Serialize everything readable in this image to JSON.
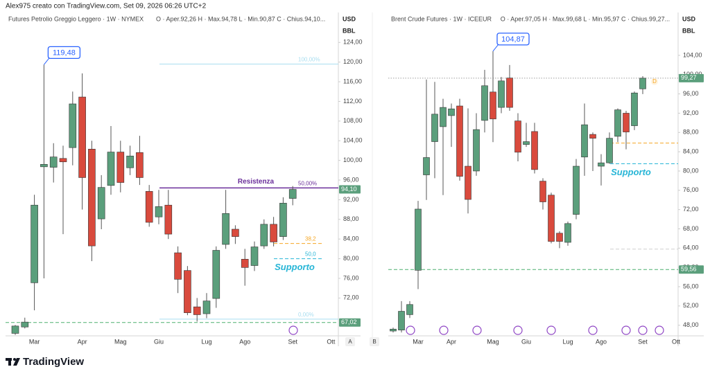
{
  "header": {
    "text": "Alex975 creato con TradingView.com, Set 09, 2026 06:26 UTC+2"
  },
  "chart_data": [
    {
      "type": "candlestick",
      "title": "Futures Petrolio Greggio Leggero · 1W · NYMEX",
      "legend": "O · Aper.92,26  H · Max.94,78  L · Min.90,87  C · Chius.94,10...",
      "currency": "USD",
      "unit": "BBL",
      "categories": [
        null,
        null,
        "Mar",
        null,
        null,
        null,
        null,
        "Apr",
        null,
        null,
        null,
        "Mag",
        null,
        null,
        null,
        "Giu",
        null,
        null,
        null,
        null,
        "Lug",
        null,
        null,
        null,
        "Ago",
        null,
        null,
        null,
        null,
        "Set",
        null,
        null,
        null,
        "Ott"
      ],
      "open": [
        64.8,
        66.1,
        75.1,
        98.7,
        98.6,
        100.4,
        102.6,
        112.9,
        102.3,
        88.1,
        94.9,
        101.7,
        98.5,
        101.6,
        93.7,
        88.5,
        90.9,
        81.2,
        77.6,
        70.2,
        68.8,
        71.9,
        82.9,
        86,
        79.9,
        78.6,
        82.6,
        87,
        84.5,
        92.26,
        null,
        null,
        null,
        null
      ],
      "high": [
        66.5,
        68,
        93,
        119.48,
        103.5,
        103,
        114,
        117.7,
        104,
        97,
        107,
        104,
        103,
        105,
        95,
        94,
        94,
        82.5,
        78.5,
        72,
        73,
        82.5,
        94,
        86.8,
        82,
        83.5,
        88,
        88.5,
        92.5,
        94.78,
        null,
        null,
        null,
        null
      ],
      "low": [
        64.5,
        65.8,
        69.5,
        76,
        95.5,
        85,
        99,
        90,
        79.5,
        86,
        93,
        93.5,
        97,
        95,
        86.5,
        87,
        84,
        73,
        68.5,
        67.2,
        67.9,
        70,
        82,
        83,
        74.5,
        77.5,
        82,
        82.5,
        83.8,
        90.87,
        null,
        null,
        null,
        null
      ],
      "close": [
        66.3,
        67.1,
        90.9,
        99.2,
        100.7,
        99.7,
        111.5,
        96.5,
        82.6,
        94.5,
        101.7,
        95.5,
        100.9,
        96.5,
        87.4,
        90.6,
        85,
        75.8,
        69,
        68.6,
        71.4,
        81.7,
        89.2,
        84.5,
        78.2,
        82.4,
        87,
        83.4,
        91.3,
        94.1,
        null,
        null,
        null,
        null
      ],
      "up_color": "#5b9f7c",
      "down_color": "#d94a3d",
      "ylim": [
        64.3,
        130.1
      ],
      "yticks": [
        {
          "value": 72,
          "label": "72,00"
        },
        {
          "value": 76,
          "label": "76,00"
        },
        {
          "value": 80,
          "label": "80,00"
        },
        {
          "value": 84,
          "label": "84,00"
        },
        {
          "value": 88,
          "label": "88,00"
        },
        {
          "value": 92,
          "label": "92,00"
        },
        {
          "value": 96,
          "label": "96,00"
        },
        {
          "value": 100,
          "label": "100,00"
        },
        {
          "value": 104,
          "label": "104,00"
        },
        {
          "value": 108,
          "label": "108,00"
        },
        {
          "value": 112,
          "label": "112,00"
        },
        {
          "value": 116,
          "label": "116,00"
        },
        {
          "value": 120,
          "label": "120,00"
        },
        {
          "value": 124,
          "label": "124,00"
        }
      ],
      "grid": false,
      "callout": {
        "value": 119.48,
        "label": "119,48"
      },
      "lines": [
        {
          "value": 119.6,
          "color": "#a9def0",
          "style": "solid",
          "span": "partial",
          "tag": "100,00%"
        },
        {
          "value": 94.4,
          "color": "#6a2e9a",
          "style": "solid",
          "span": "partial",
          "label": "Resistenza",
          "tag": "50,00%"
        },
        {
          "value": 83.1,
          "color": "#f5a623",
          "style": "dashed",
          "span": "short",
          "tag": "38,2"
        },
        {
          "value": 80.0,
          "color": "#26b5d6",
          "style": "dashed",
          "span": "short",
          "tag": "50,0",
          "label": "Supporto"
        },
        {
          "value": 67.7,
          "color": "#a9def0",
          "style": "solid",
          "span": "partial",
          "tag": "0,00%"
        },
        {
          "value": 67.02,
          "color": "#4caf6e",
          "style": "dashed",
          "span": "full"
        }
      ],
      "price_tags": [
        {
          "value": 94.1,
          "label": "94,10",
          "color": "#5b9f7c"
        },
        {
          "value": 67.02,
          "label": "67,02",
          "color": "#5b9f7c"
        }
      ]
    },
    {
      "type": "candlestick",
      "title": "Brent Crude Futures · 1W · ICEEUR",
      "legend": "O · Aper.97,05  H · Max.99,68  L · Min.95,97  C · Chius.99,27...",
      "currency": "USD",
      "unit": "BBL",
      "categories": [
        null,
        null,
        null,
        "Mar",
        null,
        null,
        null,
        "Apr",
        null,
        null,
        null,
        null,
        "Mag",
        null,
        null,
        null,
        "Giu",
        null,
        null,
        null,
        null,
        "Lug",
        null,
        null,
        null,
        "Ago",
        null,
        null,
        null,
        null,
        "Set",
        null,
        null,
        null,
        "Ott"
      ],
      "open": [
        46.8,
        47.0,
        50.2,
        59.4,
        79.2,
        86.1,
        89.2,
        91.5,
        93.5,
        81.0,
        80.0,
        90.5,
        96.4,
        93.2,
        99.3,
        90.4,
        85.5,
        88.2,
        77.9,
        75.0,
        67.1,
        65.2,
        71.0,
        82.9,
        87.6,
        81.0,
        81.7,
        87.2,
        92.0,
        89.4,
        97.05,
        null,
        null,
        null,
        null
      ],
      "high": [
        47.5,
        53,
        53,
        73.8,
        99,
        98.5,
        95,
        94,
        95,
        93,
        92,
        101,
        104.87,
        99.5,
        102,
        92,
        90,
        90,
        78.5,
        75.5,
        67.5,
        69.5,
        82.5,
        94,
        88,
        83.5,
        88,
        93,
        92.5,
        96.5,
        99.68,
        null,
        null,
        null,
        null
      ],
      "low": [
        46.5,
        46.5,
        49.5,
        55.5,
        74,
        78.5,
        75,
        85,
        78,
        71.2,
        79,
        88,
        86,
        92,
        92.5,
        82,
        85,
        79.5,
        72,
        65,
        64,
        64.5,
        70,
        79,
        80,
        77,
        81.5,
        86,
        84.5,
        88.5,
        95.97,
        null,
        null,
        null,
        null
      ],
      "close": [
        47.2,
        50.9,
        52.3,
        72.1,
        82.8,
        91.8,
        93.2,
        92.9,
        78.9,
        74.1,
        88.6,
        97.7,
        90.8,
        98.7,
        93.2,
        83.9,
        86.1,
        80.3,
        73.6,
        65.4,
        65.4,
        69.1,
        81.0,
        89.6,
        86.8,
        81.7,
        86.8,
        92.7,
        88.1,
        96.2,
        99.27,
        null,
        null,
        null,
        null
      ],
      "up_color": "#5b9f7c",
      "down_color": "#d94a3d",
      "ylim": [
        45.8,
        112.9
      ],
      "yticks": [
        {
          "value": 48,
          "label": "48,00"
        },
        {
          "value": 52,
          "label": "52,00"
        },
        {
          "value": 56,
          "label": "56,00"
        },
        {
          "value": 60,
          "label": "60,00"
        },
        {
          "value": 64,
          "label": "64,00"
        },
        {
          "value": 68,
          "label": "68,00"
        },
        {
          "value": 72,
          "label": "72,00"
        },
        {
          "value": 76,
          "label": "76,00"
        },
        {
          "value": 80,
          "label": "80,00"
        },
        {
          "value": 84,
          "label": "84,00"
        },
        {
          "value": 88,
          "label": "88,00"
        },
        {
          "value": 92,
          "label": "92,00"
        },
        {
          "value": 96,
          "label": "96,00"
        },
        {
          "value": 100,
          "label": "100,00"
        },
        {
          "value": 104,
          "label": "104,00"
        }
      ],
      "grid": false,
      "callout": {
        "value": 104.87,
        "label": "104,87"
      },
      "lines": [
        {
          "value": 99.27,
          "color": "#9e9e9e",
          "style": "dotted",
          "span": "full",
          "tag": "D"
        },
        {
          "value": 85.8,
          "color": "#f5a623",
          "style": "dashed",
          "span": "short"
        },
        {
          "value": 81.5,
          "color": "#26b5d6",
          "style": "dashed",
          "span": "short",
          "label": "Supporto"
        },
        {
          "value": 63.8,
          "color": "#cfcfcf",
          "style": "dashed",
          "span": "short"
        },
        {
          "value": 59.56,
          "color": "#4caf6e",
          "style": "dashed",
          "span": "full"
        }
      ],
      "price_tags": [
        {
          "value": 99.27,
          "label": "99,27",
          "color": "#5b9f7c"
        },
        {
          "value": 59.56,
          "label": "59,56",
          "color": "#5b9f7c"
        }
      ]
    }
  ],
  "panel_buttons": [
    "A",
    "B"
  ],
  "footer": {
    "logo": "TradingView"
  }
}
